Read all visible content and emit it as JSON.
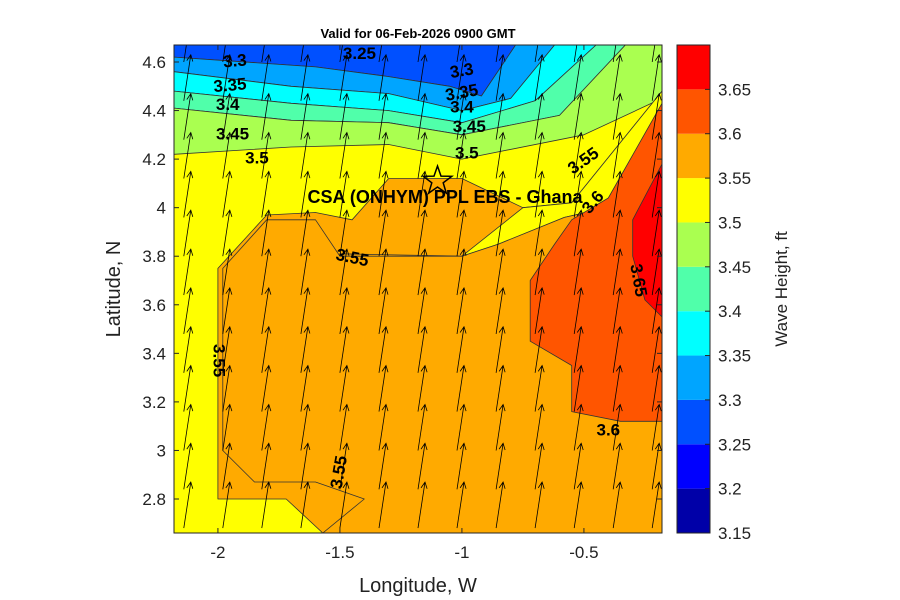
{
  "chart_data": {
    "type": "contour",
    "title": "Valid for 06-Feb-2026 0900 GMT",
    "xlabel": "Longitude, W",
    "ylabel": "Latitude, N",
    "xlim": [
      -2.18,
      -0.18
    ],
    "ylim": [
      2.66,
      4.67
    ],
    "xticks": [
      {
        "v": -2,
        "label": "-2"
      },
      {
        "v": -1.5,
        "label": "-1.5"
      },
      {
        "v": -1,
        "label": "-1"
      },
      {
        "v": -0.5,
        "label": "-0.5"
      }
    ],
    "yticks": [
      {
        "v": 2.8,
        "label": "2.8"
      },
      {
        "v": 3,
        "label": "3"
      },
      {
        "v": 3.2,
        "label": "3.2"
      },
      {
        "v": 3.4,
        "label": "3.4"
      },
      {
        "v": 3.6,
        "label": "3.6"
      },
      {
        "v": 3.8,
        "label": "3.8"
      },
      {
        "v": 4,
        "label": "4"
      },
      {
        "v": 4.2,
        "label": "4.2"
      },
      {
        "v": 4.4,
        "label": "4.4"
      },
      {
        "v": 4.6,
        "label": "4.6"
      }
    ],
    "colorbar": {
      "label": "Wave Height, ft",
      "range": [
        3.15,
        3.7
      ],
      "levels": [
        {
          "from": 3.15,
          "to": 3.2,
          "color": "#0000a8"
        },
        {
          "from": 3.2,
          "to": 3.25,
          "color": "#0000ff"
        },
        {
          "from": 3.25,
          "to": 3.3,
          "color": "#0050ff"
        },
        {
          "from": 3.3,
          "to": 3.35,
          "color": "#00a5ff"
        },
        {
          "from": 3.35,
          "to": 3.4,
          "color": "#00ffff"
        },
        {
          "from": 3.4,
          "to": 3.45,
          "color": "#50ffaa"
        },
        {
          "from": 3.45,
          "to": 3.5,
          "color": "#aaff50"
        },
        {
          "from": 3.5,
          "to": 3.55,
          "color": "#ffff00"
        },
        {
          "from": 3.55,
          "to": 3.6,
          "color": "#ffaa00"
        },
        {
          "from": 3.6,
          "to": 3.65,
          "color": "#ff5500"
        },
        {
          "from": 3.65,
          "to": 3.7,
          "color": "#ff0000"
        }
      ],
      "ticks": [
        {
          "v": 3.15,
          "label": "3.15"
        },
        {
          "v": 3.2,
          "label": "3.2"
        },
        {
          "v": 3.25,
          "label": "3.25"
        },
        {
          "v": 3.3,
          "label": "3.3"
        },
        {
          "v": 3.35,
          "label": "3.35"
        },
        {
          "v": 3.4,
          "label": "3.4"
        },
        {
          "v": 3.45,
          "label": "3.45"
        },
        {
          "v": 3.5,
          "label": "3.5"
        },
        {
          "v": 3.55,
          "label": "3.55"
        },
        {
          "v": 3.6,
          "label": "3.6"
        },
        {
          "v": 3.65,
          "label": "3.65"
        }
      ]
    },
    "region_bands": [
      {
        "value": 3.25,
        "boundary": [
          [
            -2.18,
            4.67
          ],
          [
            -0.78,
            4.67
          ],
          [
            -0.92,
            4.46
          ],
          [
            -1.05,
            4.5
          ],
          [
            -1.3,
            4.54
          ],
          [
            -1.6,
            4.58
          ],
          [
            -2.18,
            4.62
          ]
        ]
      },
      {
        "value": 3.3,
        "boundary": [
          [
            -2.18,
            4.62
          ],
          [
            -1.6,
            4.58
          ],
          [
            -1.3,
            4.54
          ],
          [
            -1.05,
            4.5
          ],
          [
            -0.92,
            4.46
          ],
          [
            -0.78,
            4.67
          ],
          [
            -0.62,
            4.67
          ],
          [
            -0.8,
            4.45
          ],
          [
            -1.0,
            4.4
          ],
          [
            -1.3,
            4.47
          ],
          [
            -1.7,
            4.5
          ],
          [
            -2.18,
            4.56
          ]
        ]
      },
      {
        "value": 3.35,
        "boundary": [
          [
            -2.18,
            4.56
          ],
          [
            -1.7,
            4.5
          ],
          [
            -1.3,
            4.47
          ],
          [
            -1.0,
            4.4
          ],
          [
            -0.8,
            4.45
          ],
          [
            -0.62,
            4.67
          ],
          [
            -0.45,
            4.67
          ],
          [
            -0.7,
            4.44
          ],
          [
            -1.0,
            4.35
          ],
          [
            -1.3,
            4.4
          ],
          [
            -1.7,
            4.43
          ],
          [
            -2.18,
            4.48
          ]
        ]
      },
      {
        "value": 3.4,
        "boundary": [
          [
            -2.18,
            4.48
          ],
          [
            -1.7,
            4.43
          ],
          [
            -1.3,
            4.4
          ],
          [
            -1.0,
            4.35
          ],
          [
            -0.7,
            4.44
          ],
          [
            -0.45,
            4.67
          ],
          [
            -0.33,
            4.67
          ],
          [
            -0.6,
            4.38
          ],
          [
            -1.0,
            4.3
          ],
          [
            -1.3,
            4.35
          ],
          [
            -1.7,
            4.36
          ],
          [
            -2.18,
            4.41
          ]
        ]
      },
      {
        "value": 3.45,
        "boundary": [
          [
            -2.18,
            4.41
          ],
          [
            -1.7,
            4.36
          ],
          [
            -1.3,
            4.35
          ],
          [
            -1.0,
            4.3
          ],
          [
            -0.6,
            4.38
          ],
          [
            -0.33,
            4.67
          ],
          [
            -0.18,
            4.67
          ],
          [
            -0.18,
            4.45
          ],
          [
            -0.5,
            4.3
          ],
          [
            -1.0,
            4.2
          ],
          [
            -1.3,
            4.26
          ],
          [
            -1.7,
            4.25
          ],
          [
            -2.18,
            4.22
          ]
        ]
      },
      {
        "value": 3.55,
        "boundary": [
          [
            -1.3,
            4.12
          ],
          [
            -1.0,
            4.12
          ],
          [
            -0.75,
            4.0
          ],
          [
            -0.55,
            4.02
          ],
          [
            -0.18,
            4.48
          ],
          [
            -0.18,
            2.66
          ],
          [
            -1.57,
            2.66
          ],
          [
            -1.72,
            2.8
          ],
          [
            -2.0,
            2.8
          ],
          [
            -2.0,
            3.75
          ],
          [
            -1.8,
            3.97
          ],
          [
            -1.6,
            3.98
          ],
          [
            -1.45,
            3.95
          ]
        ]
      },
      {
        "value": 3.5,
        "boundary": [
          [
            -1.5,
            3.81
          ],
          [
            -1.0,
            3.8
          ],
          [
            -0.75,
            4.0
          ],
          [
            -0.55,
            4.02
          ],
          [
            -0.18,
            4.48
          ],
          [
            -0.18,
            4.05
          ],
          [
            -0.58,
            3.96
          ],
          [
            -0.85,
            3.85
          ],
          [
            -1.0,
            3.8
          ]
        ]
      },
      {
        "value": 3.55,
        "boundary": [
          [
            -1.5,
            3.8
          ],
          [
            -1.0,
            3.8
          ],
          [
            -0.85,
            3.85
          ],
          [
            -0.58,
            3.96
          ],
          [
            -0.18,
            4.05
          ],
          [
            -0.18,
            2.66
          ],
          [
            -1.57,
            2.66
          ],
          [
            -1.4,
            2.8
          ],
          [
            -1.6,
            2.87
          ],
          [
            -1.85,
            2.87
          ],
          [
            -1.98,
            3.0
          ],
          [
            -1.98,
            3.75
          ],
          [
            -1.8,
            3.95
          ],
          [
            -1.6,
            3.95
          ]
        ]
      },
      {
        "value": 3.6,
        "boundary": [
          [
            -0.55,
            3.95
          ],
          [
            -0.4,
            4.04
          ],
          [
            -0.18,
            4.43
          ],
          [
            -0.18,
            3.12
          ],
          [
            -0.35,
            3.12
          ],
          [
            -0.55,
            3.16
          ],
          [
            -0.55,
            3.35
          ],
          [
            -0.72,
            3.45
          ],
          [
            -0.72,
            3.7
          ],
          [
            -0.62,
            3.85
          ]
        ]
      },
      {
        "value": 3.65,
        "boundary": [
          [
            -0.3,
            3.95
          ],
          [
            -0.18,
            4.18
          ],
          [
            -0.18,
            3.55
          ],
          [
            -0.25,
            3.62
          ],
          [
            -0.3,
            3.8
          ]
        ]
      }
    ],
    "contour_labels": [
      {
        "text": "3.25",
        "x": -1.42,
        "y": 4.63,
        "rot": 0
      },
      {
        "text": "3.3",
        "x": -1.93,
        "y": 4.6,
        "rot": -5
      },
      {
        "text": "3.3",
        "x": -1.0,
        "y": 4.56,
        "rot": -10
      },
      {
        "text": "3.35",
        "x": -1.95,
        "y": 4.5,
        "rot": -5
      },
      {
        "text": "3.35",
        "x": -1.0,
        "y": 4.47,
        "rot": -10
      },
      {
        "text": "3.4",
        "x": -1.96,
        "y": 4.42,
        "rot": 0
      },
      {
        "text": "3.4",
        "x": -1.0,
        "y": 4.41,
        "rot": 0
      },
      {
        "text": "3.45",
        "x": -1.94,
        "y": 4.3,
        "rot": 0
      },
      {
        "text": "3.45",
        "x": -0.97,
        "y": 4.33,
        "rot": 0
      },
      {
        "text": "3.5",
        "x": -1.84,
        "y": 4.2,
        "rot": 0
      },
      {
        "text": "3.5",
        "x": -0.98,
        "y": 4.22,
        "rot": 0
      },
      {
        "text": "3.55",
        "x": -0.5,
        "y": 4.19,
        "rot": -35
      },
      {
        "text": "3.6",
        "x": -0.46,
        "y": 4.02,
        "rot": -50
      },
      {
        "text": "3.65",
        "x": -0.28,
        "y": 3.7,
        "rot": 80
      },
      {
        "text": "3.55",
        "x": -1.45,
        "y": 3.79,
        "rot": 12
      },
      {
        "text": "3.55",
        "x": -2.0,
        "y": 3.37,
        "rot": 90
      },
      {
        "text": "3.6",
        "x": -0.4,
        "y": 3.08,
        "rot": 0
      },
      {
        "text": "3.55",
        "x": -1.5,
        "y": 2.91,
        "rot": -80
      }
    ],
    "site": {
      "name": "CSA (ONHYM) PPL EBS  - Ghana",
      "marker": "star",
      "lon": -1.1,
      "lat": 4.11
    },
    "wind_arrows": {
      "direction": "north-north-east",
      "spacing_deg": 0.16
    }
  }
}
